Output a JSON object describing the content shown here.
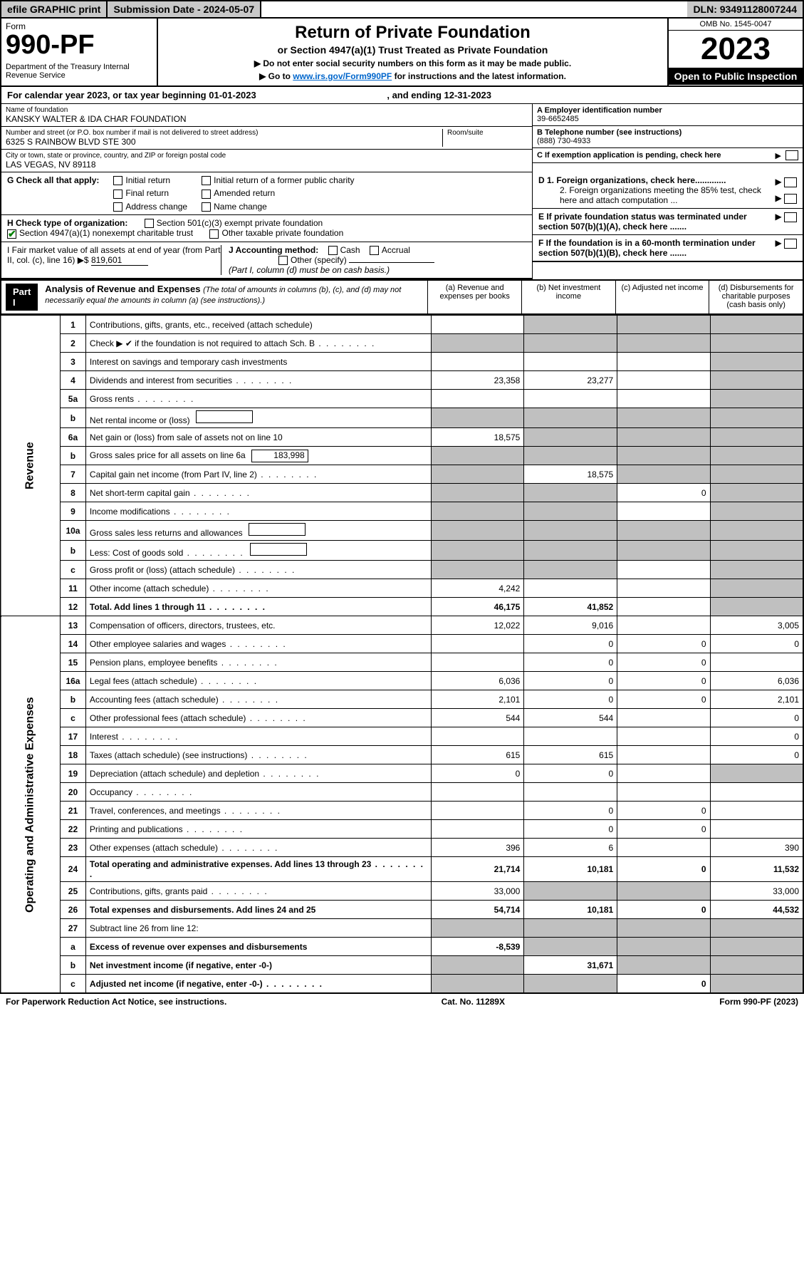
{
  "topbar": {
    "efile": "efile GRAPHIC print",
    "submission_label": "Submission Date - 2024-05-07",
    "dln": "DLN: 93491128007244"
  },
  "header": {
    "form_label": "Form",
    "form_number": "990-PF",
    "dept": "Department of the Treasury Internal Revenue Service",
    "title": "Return of Private Foundation",
    "subtitle": "or Section 4947(a)(1) Trust Treated as Private Foundation",
    "directive1": "▶ Do not enter social security numbers on this form as it may be made public.",
    "directive2_pre": "▶ Go to ",
    "directive2_link": "www.irs.gov/Form990PF",
    "directive2_post": " for instructions and the latest information.",
    "omb": "OMB No. 1545-0047",
    "year": "2023",
    "open_public": "Open to Public Inspection"
  },
  "calendar": {
    "text_pre": "For calendar year 2023, or tax year beginning ",
    "begin": "01-01-2023",
    "text_mid": "  , and ending ",
    "end": "12-31-2023"
  },
  "info": {
    "name_label": "Name of foundation",
    "name": "KANSKY WALTER & IDA CHAR FOUNDATION",
    "address_label": "Number and street (or P.O. box number if mail is not delivered to street address)",
    "address": "6325 S RAINBOW BLVD STE 300",
    "room_label": "Room/suite",
    "city_label": "City or town, state or province, country, and ZIP or foreign postal code",
    "city": "LAS VEGAS, NV  89118",
    "ein_label": "A Employer identification number",
    "ein": "39-6652485",
    "phone_label": "B Telephone number (see instructions)",
    "phone": "(888) 730-4933",
    "c_label": "C If exemption application is pending, check here",
    "d1_label": "D 1. Foreign organizations, check here.............",
    "d2_label": "2. Foreign organizations meeting the 85% test, check here and attach computation ...",
    "e_label": "E  If private foundation status was terminated under section 507(b)(1)(A), check here .......",
    "f_label": "F  If the foundation is in a 60-month termination under section 507(b)(1)(B), check here .......",
    "g_label": "G Check all that apply:",
    "g_opts": [
      "Initial return",
      "Final return",
      "Address change",
      "Initial return of a former public charity",
      "Amended return",
      "Name change"
    ],
    "h_label": "H Check type of organization:",
    "h_opt1": "Section 501(c)(3) exempt private foundation",
    "h_opt2": "Section 4947(a)(1) nonexempt charitable trust",
    "h_opt3": "Other taxable private foundation",
    "i_label_pre": "I Fair market value of all assets at end of year (from Part II, col. (c), line 16) ▶$ ",
    "i_value": "819,601",
    "j_label": "J Accounting method:",
    "j_cash": "Cash",
    "j_accrual": "Accrual",
    "j_other": "Other (specify)",
    "j_note": "(Part I, column (d) must be on cash basis.)"
  },
  "part1": {
    "label": "Part I",
    "title": "Analysis of Revenue and Expenses",
    "sub": "(The total of amounts in columns (b), (c), and (d) may not necessarily equal the amounts in column (a) (see instructions).)",
    "col_a": "(a)   Revenue and expenses per books",
    "col_b": "(b)   Net investment income",
    "col_c": "(c)   Adjusted net income",
    "col_d": "(d)   Disbursements for charitable purposes (cash basis only)"
  },
  "sidelabels": {
    "revenue": "Revenue",
    "expenses": "Operating and Administrative Expenses"
  },
  "lines": [
    {
      "n": "1",
      "d": "Contributions, gifts, grants, etc., received (attach schedule)",
      "a": "",
      "b": "s",
      "c": "s",
      "dd": "s"
    },
    {
      "n": "2",
      "d": "Check ▶ ✔ if the foundation is not required to attach Sch. B",
      "a": "s",
      "b": "s",
      "c": "s",
      "dd": "s",
      "dots": true
    },
    {
      "n": "3",
      "d": "Interest on savings and temporary cash investments",
      "a": "",
      "b": "",
      "c": "",
      "dd": "s"
    },
    {
      "n": "4",
      "d": "Dividends and interest from securities",
      "a": "23,358",
      "b": "23,277",
      "c": "",
      "dd": "s",
      "dots": true
    },
    {
      "n": "5a",
      "d": "Gross rents",
      "a": "",
      "b": "",
      "c": "",
      "dd": "s",
      "dots": true
    },
    {
      "n": "b",
      "d": "Net rental income or (loss)",
      "a": "s",
      "b": "s",
      "c": "s",
      "dd": "s",
      "inline": ""
    },
    {
      "n": "6a",
      "d": "Net gain or (loss) from sale of assets not on line 10",
      "a": "18,575",
      "b": "s",
      "c": "s",
      "dd": "s"
    },
    {
      "n": "b",
      "d": "Gross sales price for all assets on line 6a",
      "a": "s",
      "b": "s",
      "c": "s",
      "dd": "s",
      "inline": "183,998"
    },
    {
      "n": "7",
      "d": "Capital gain net income (from Part IV, line 2)",
      "a": "s",
      "b": "18,575",
      "c": "s",
      "dd": "s",
      "dots": true
    },
    {
      "n": "8",
      "d": "Net short-term capital gain",
      "a": "s",
      "b": "s",
      "c": "0",
      "dd": "s",
      "dots": true
    },
    {
      "n": "9",
      "d": "Income modifications",
      "a": "s",
      "b": "s",
      "c": "",
      "dd": "s",
      "dots": true
    },
    {
      "n": "10a",
      "d": "Gross sales less returns and allowances",
      "a": "s",
      "b": "s",
      "c": "s",
      "dd": "s",
      "inline": ""
    },
    {
      "n": "b",
      "d": "Less: Cost of goods sold",
      "a": "s",
      "b": "s",
      "c": "s",
      "dd": "s",
      "inline": "",
      "dots": true
    },
    {
      "n": "c",
      "d": "Gross profit or (loss) (attach schedule)",
      "a": "s",
      "b": "s",
      "c": "",
      "dd": "s",
      "dots": true
    },
    {
      "n": "11",
      "d": "Other income (attach schedule)",
      "a": "4,242",
      "b": "",
      "c": "",
      "dd": "s",
      "dots": true
    },
    {
      "n": "12",
      "d": "Total. Add lines 1 through 11",
      "a": "46,175",
      "b": "41,852",
      "c": "",
      "dd": "s",
      "bold": true,
      "dots": true
    },
    {
      "n": "13",
      "d": "Compensation of officers, directors, trustees, etc.",
      "a": "12,022",
      "b": "9,016",
      "c": "",
      "dd": "3,005"
    },
    {
      "n": "14",
      "d": "Other employee salaries and wages",
      "a": "",
      "b": "0",
      "c": "0",
      "dd": "0",
      "dots": true
    },
    {
      "n": "15",
      "d": "Pension plans, employee benefits",
      "a": "",
      "b": "0",
      "c": "0",
      "dd": "",
      "dots": true
    },
    {
      "n": "16a",
      "d": "Legal fees (attach schedule)",
      "a": "6,036",
      "b": "0",
      "c": "0",
      "dd": "6,036",
      "dots": true
    },
    {
      "n": "b",
      "d": "Accounting fees (attach schedule)",
      "a": "2,101",
      "b": "0",
      "c": "0",
      "dd": "2,101",
      "dots": true
    },
    {
      "n": "c",
      "d": "Other professional fees (attach schedule)",
      "a": "544",
      "b": "544",
      "c": "",
      "dd": "0",
      "dots": true
    },
    {
      "n": "17",
      "d": "Interest",
      "a": "",
      "b": "",
      "c": "",
      "dd": "0",
      "dots": true
    },
    {
      "n": "18",
      "d": "Taxes (attach schedule) (see instructions)",
      "a": "615",
      "b": "615",
      "c": "",
      "dd": "0",
      "dots": true
    },
    {
      "n": "19",
      "d": "Depreciation (attach schedule) and depletion",
      "a": "0",
      "b": "0",
      "c": "",
      "dd": "s",
      "dots": true
    },
    {
      "n": "20",
      "d": "Occupancy",
      "a": "",
      "b": "",
      "c": "",
      "dd": "",
      "dots": true
    },
    {
      "n": "21",
      "d": "Travel, conferences, and meetings",
      "a": "",
      "b": "0",
      "c": "0",
      "dd": "",
      "dots": true
    },
    {
      "n": "22",
      "d": "Printing and publications",
      "a": "",
      "b": "0",
      "c": "0",
      "dd": "",
      "dots": true
    },
    {
      "n": "23",
      "d": "Other expenses (attach schedule)",
      "a": "396",
      "b": "6",
      "c": "",
      "dd": "390",
      "dots": true
    },
    {
      "n": "24",
      "d": "Total operating and administrative expenses. Add lines 13 through 23",
      "a": "21,714",
      "b": "10,181",
      "c": "0",
      "dd": "11,532",
      "bold": true,
      "dots": true
    },
    {
      "n": "25",
      "d": "Contributions, gifts, grants paid",
      "a": "33,000",
      "b": "s",
      "c": "s",
      "dd": "33,000",
      "dots": true
    },
    {
      "n": "26",
      "d": "Total expenses and disbursements. Add lines 24 and 25",
      "a": "54,714",
      "b": "10,181",
      "c": "0",
      "dd": "44,532",
      "bold": true
    },
    {
      "n": "27",
      "d": "Subtract line 26 from line 12:",
      "a": "s",
      "b": "s",
      "c": "s",
      "dd": "s"
    },
    {
      "n": "a",
      "d": "Excess of revenue over expenses and disbursements",
      "a": "-8,539",
      "b": "s",
      "c": "s",
      "dd": "s",
      "bold": true
    },
    {
      "n": "b",
      "d": "Net investment income (if negative, enter -0-)",
      "a": "s",
      "b": "31,671",
      "c": "s",
      "dd": "s",
      "bold": true
    },
    {
      "n": "c",
      "d": "Adjusted net income (if negative, enter -0-)",
      "a": "s",
      "b": "s",
      "c": "0",
      "dd": "s",
      "bold": true,
      "dots": true
    }
  ],
  "footer": {
    "left": "For Paperwork Reduction Act Notice, see instructions.",
    "mid": "Cat. No. 11289X",
    "right": "Form 990-PF (2023)"
  },
  "colors": {
    "shade": "#c0c0c0",
    "link": "#0066cc",
    "check": "#008000"
  }
}
